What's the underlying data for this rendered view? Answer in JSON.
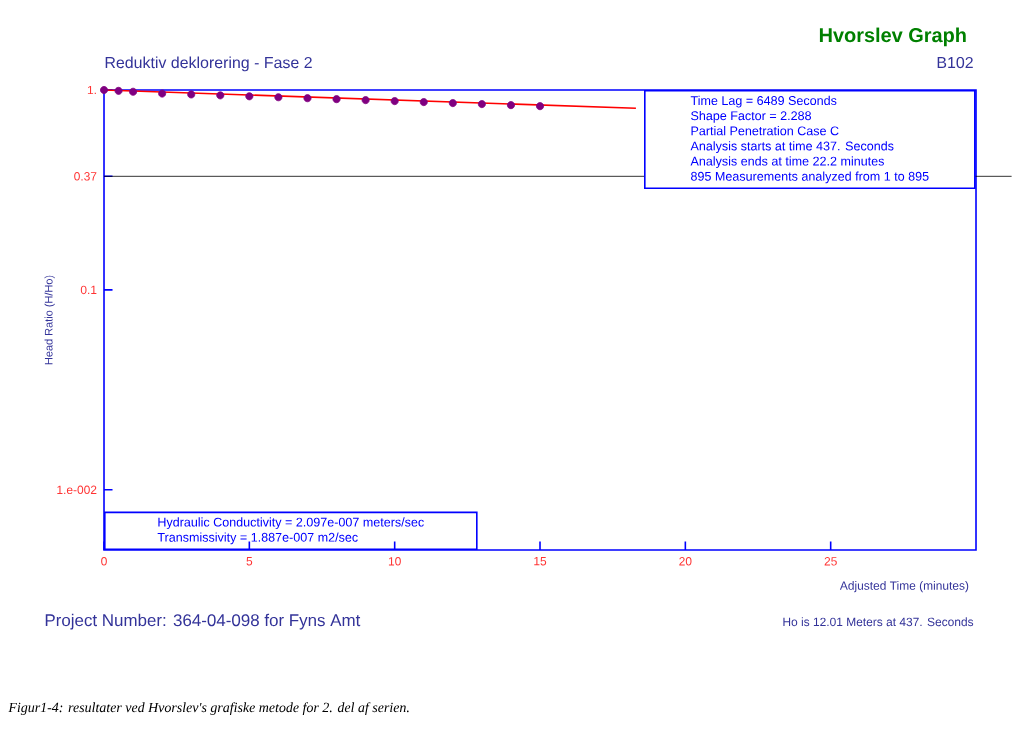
{
  "chart_data": {
    "type": "scatter",
    "title": "Hvorslev Graph",
    "subtitle": "Reduktiv deklorering - Fase 2",
    "xlabel": "Adjusted Time (minutes)",
    "ylabel": "Head Ratio (H/Ho)",
    "annotations": [
      "B102",
      "Time Lag = 6489 Seconds",
      "Shape Factor = 2.288",
      "Partial Penetration Case C",
      "Analysis starts at time 437. Seconds",
      "Analysis ends at time 22.2 minutes",
      "895 Measurements analyzed from 1 to 895",
      "Hydraulic Conductivity = 2.097e-007 meters/sec",
      "Transmissivity = 1.887e-007 m2/sec",
      "Ho is 12.01 Meters at 437. Seconds",
      "Project Number: 364-04-098 for Fyns Amt",
      "Figur1-4: resultater ved Hvorslev's grafiske metode for 2. del af serien."
    ],
    "log": "y",
    "xlim": [
      0,
      30
    ],
    "ylim": [
      0.005,
      1
    ],
    "xticks": [
      0,
      5,
      10,
      15,
      20,
      25
    ],
    "yticks": [
      {
        "value": 1,
        "label": "1."
      },
      {
        "value": 0.37,
        "label": "0.37"
      },
      {
        "value": 0.1,
        "label": "0.1"
      },
      {
        "value": 0.01,
        "label": "1.e-002"
      }
    ],
    "ref_lines": [
      {
        "axis": "y",
        "value": 0.37,
        "color": "#000000"
      }
    ],
    "marker": "circle",
    "series": [
      {
        "color": "#800080",
        "x": [
          0,
          0.5,
          1,
          2,
          3,
          4,
          5,
          6,
          7,
          8,
          9,
          10,
          11,
          12,
          13,
          14,
          15
        ],
        "values": [
          1.0,
          0.99,
          0.98,
          0.96,
          0.95,
          0.94,
          0.93,
          0.92,
          0.91,
          0.9,
          0.89,
          0.88,
          0.87,
          0.86,
          0.85,
          0.84,
          0.83
        ]
      },
      {
        "type": "line",
        "color": "#ff0000",
        "marker": "none",
        "x": [
          0,
          18.3
        ],
        "values": [
          1.0,
          0.81
        ]
      }
    ]
  }
}
